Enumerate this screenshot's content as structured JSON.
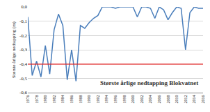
{
  "chart_data": {
    "type": "line",
    "title": "Største årlige nedtapping Blokvatnet",
    "y_label": "Største årlige nedtapping (m)",
    "x": [
      1976,
      1977,
      1978,
      1979,
      1980,
      1981,
      1982,
      1983,
      1984,
      1985,
      1986,
      1987,
      1988,
      1989,
      1990,
      1991,
      1992,
      1993,
      1994,
      1995,
      1996,
      1997,
      1998,
      1999,
      2000,
      2001,
      2002,
      2003,
      2004,
      2005,
      2006,
      2007,
      2008,
      2009,
      2010,
      2011,
      2012,
      2013,
      2014,
      2015,
      2016
    ],
    "series": [
      {
        "color": "#4a7ebb",
        "values": [
          -0.07,
          -0.48,
          -0.38,
          -0.49,
          -0.27,
          -0.47,
          -0.16,
          -0.05,
          -0.13,
          -0.51,
          -0.3,
          -0.52,
          -0.13,
          -0.15,
          -0.11,
          -0.08,
          -0.06,
          0.0,
          0.0,
          0.0,
          -0.01,
          0.0,
          0.0,
          0.0,
          0.0,
          -0.07,
          0.0,
          0.0,
          -0.01,
          -0.08,
          0.0,
          -0.02,
          -0.09,
          -0.04,
          0.0,
          -0.01,
          -0.3,
          -0.04,
          0.0,
          -0.01,
          -0.01
        ]
      },
      {
        "color": "#e02828",
        "values": [
          -0.4,
          -0.4,
          -0.4,
          -0.4,
          -0.4,
          -0.4,
          -0.4,
          -0.4,
          -0.4,
          -0.4,
          -0.4,
          -0.4,
          -0.4,
          -0.4,
          -0.4,
          -0.4,
          -0.4,
          -0.4,
          -0.4,
          -0.4,
          -0.4,
          -0.4,
          -0.4,
          -0.4,
          -0.4,
          -0.4,
          -0.4,
          -0.4,
          -0.4,
          -0.4,
          -0.4,
          -0.4,
          -0.4,
          -0.4,
          -0.4,
          -0.4,
          -0.4,
          -0.4,
          -0.4,
          -0.4,
          -0.4
        ]
      }
    ],
    "xlim": [
      1976,
      2016
    ],
    "xticks": [
      1976,
      1978,
      1980,
      1982,
      1984,
      1986,
      1988,
      1990,
      1992,
      1994,
      1996,
      1998,
      2000,
      2002,
      2004,
      2006,
      2008,
      2010,
      2012,
      2014,
      2016
    ],
    "ylim": [
      -0.6,
      0.0
    ],
    "yticks": [
      {
        "value": -0.6,
        "label": "-0,6"
      },
      {
        "value": -0.5,
        "label": "-0,5"
      },
      {
        "value": -0.4,
        "label": "-0,4"
      },
      {
        "value": -0.3,
        "label": "-0,3"
      },
      {
        "value": -0.2,
        "label": "-0,2"
      },
      {
        "value": -0.1,
        "label": "-0,1"
      },
      {
        "value": 0.0,
        "label": "0,0"
      }
    ],
    "grid": true
  }
}
